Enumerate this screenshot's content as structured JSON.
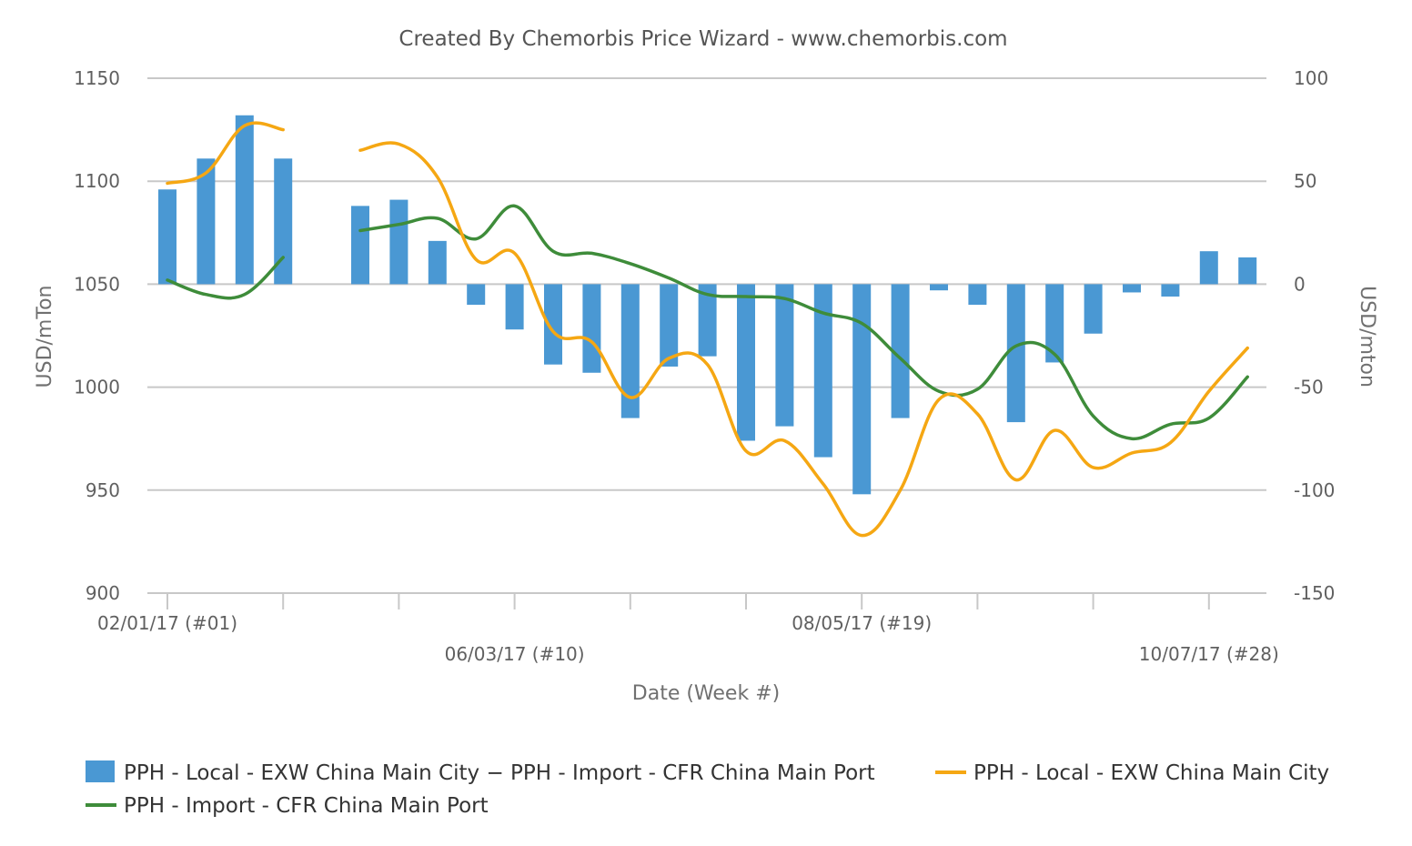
{
  "colors": {
    "bar": "#4a98d3",
    "local_line": "#f5a713",
    "import_line": "#3e8c3a"
  },
  "chart_data": {
    "type": "bar+line",
    "title": "Created By Chemorbis Price Wizard - www.chemorbis.com",
    "xlabel": "Date (Week #)",
    "ylabel_left": "USD/mTon",
    "ylabel_right": "USD/mton",
    "ylim_left": [
      900,
      1150
    ],
    "ylim_right": [
      -150,
      100
    ],
    "yticks_left": [
      "1150",
      "1100",
      "1050",
      "1000",
      "950",
      "900"
    ],
    "yticks_right": [
      "100",
      "50",
      "0",
      "-50",
      "-100",
      "-150"
    ],
    "x_tick_labels": [
      {
        "label": "02/01/17 (#01)",
        "week": 1,
        "row": 1
      },
      {
        "label": "06/03/17 (#10)",
        "week": 10,
        "row": 2
      },
      {
        "label": "08/05/17 (#19)",
        "week": 19,
        "row": 1
      },
      {
        "label": "10/07/17 (#28)",
        "week": 28,
        "row": 2
      }
    ],
    "weeks": [
      1,
      2,
      3,
      4,
      5,
      6,
      7,
      8,
      9,
      10,
      11,
      12,
      13,
      14,
      15,
      16,
      17,
      18,
      19,
      20,
      21,
      22,
      23,
      24,
      25,
      26,
      27,
      28,
      29
    ],
    "grid": true,
    "legend_position": "bottom",
    "series": [
      {
        "name": "PPH - Local - EXW China Main City − PPH - Import - CFR China Main Port",
        "type": "bar",
        "axis": "right",
        "values": [
          46,
          61,
          82,
          61,
          null,
          38,
          41,
          21,
          -10,
          -22,
          -39,
          -43,
          -65,
          -40,
          -35,
          -76,
          -69,
          -84,
          -102,
          -65,
          -3,
          -10,
          -67,
          -38,
          -24,
          -4,
          -6,
          16,
          13
        ]
      },
      {
        "name": "PPH - Local - EXW China Main City",
        "type": "line",
        "axis": "left",
        "values": [
          1099,
          1104,
          1127,
          1125,
          null,
          1115,
          1118,
          1102,
          1062,
          1065,
          1027,
          1022,
          995,
          1014,
          1011,
          969,
          974,
          953,
          928,
          950,
          994,
          987,
          955,
          979,
          961,
          968,
          973,
          998,
          1019
        ]
      },
      {
        "name": "PPH - Import - CFR China Main Port",
        "type": "line",
        "axis": "left",
        "values": [
          1052,
          1045,
          1045,
          1063,
          null,
          1076,
          1079,
          1082,
          1072,
          1088,
          1066,
          1065,
          1060,
          1053,
          1045,
          1044,
          1043,
          1036,
          1031,
          1014,
          998,
          999,
          1020,
          1016,
          986,
          975,
          982,
          985,
          1005
        ]
      }
    ]
  }
}
